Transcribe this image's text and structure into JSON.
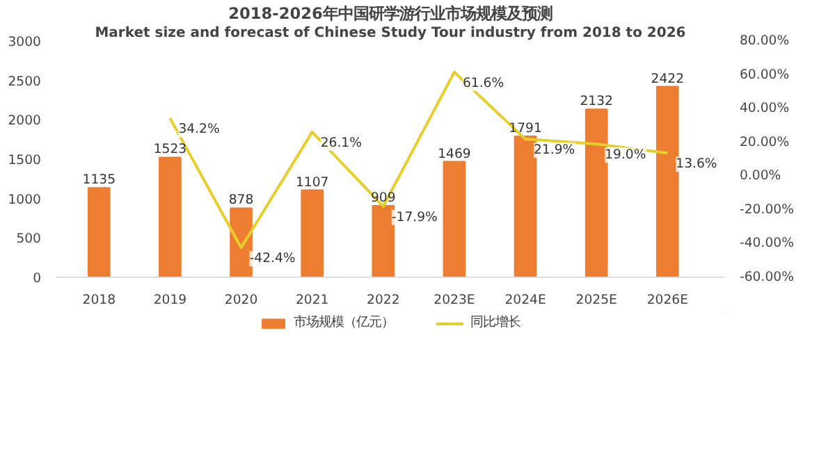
{
  "chart_data": {
    "type": "bar",
    "title": "2018-2026年中国研学游行业市场规模及预测",
    "subtitle": "Market size and forecast of Chinese Study Tour industry from 2018 to 2026",
    "categories": [
      "2018",
      "2019",
      "2020",
      "2021",
      "2022",
      "2023E",
      "2024E",
      "2025E",
      "2026E"
    ],
    "series": [
      {
        "name": "市场规模（亿元）",
        "color": "#ed7d31",
        "values": [
          1135,
          1523,
          878,
          1107,
          909,
          1469,
          1791,
          2132,
          2422
        ],
        "value_labels": [
          "1135",
          "1523",
          "878",
          "1107",
          "909",
          "1469",
          "1791",
          "2132",
          "2422"
        ]
      },
      {
        "name": "同比增长",
        "type": "line",
        "axis": "y2",
        "color": "#e6cf2a",
        "values": [
          null,
          34.2,
          -42.4,
          26.1,
          -17.9,
          61.6,
          21.9,
          19.0,
          13.6
        ],
        "value_labels": [
          null,
          "34.2%",
          "-42.4%",
          "26.1%",
          "-17.9%",
          "61.6%",
          "21.9%",
          "19.0%",
          "13.6%"
        ]
      }
    ],
    "ylim": [
      0,
      3000
    ],
    "yticks": [
      0,
      500,
      1000,
      1500,
      2000,
      2500,
      3000
    ],
    "y2lim": [
      -60,
      80
    ],
    "y2ticks": [
      {
        "value": -60,
        "label": "-60.00%"
      },
      {
        "value": -40,
        "label": "-40.00%"
      },
      {
        "value": -20,
        "label": "-20.00%"
      },
      {
        "value": 0,
        "label": "0.00%"
      },
      {
        "value": 20,
        "label": "20.00%"
      },
      {
        "value": 40,
        "label": "40.00%"
      },
      {
        "value": 60,
        "label": "60.00%"
      },
      {
        "value": 80,
        "label": "80.00%"
      }
    ],
    "grid": false,
    "legend": "bottom"
  }
}
